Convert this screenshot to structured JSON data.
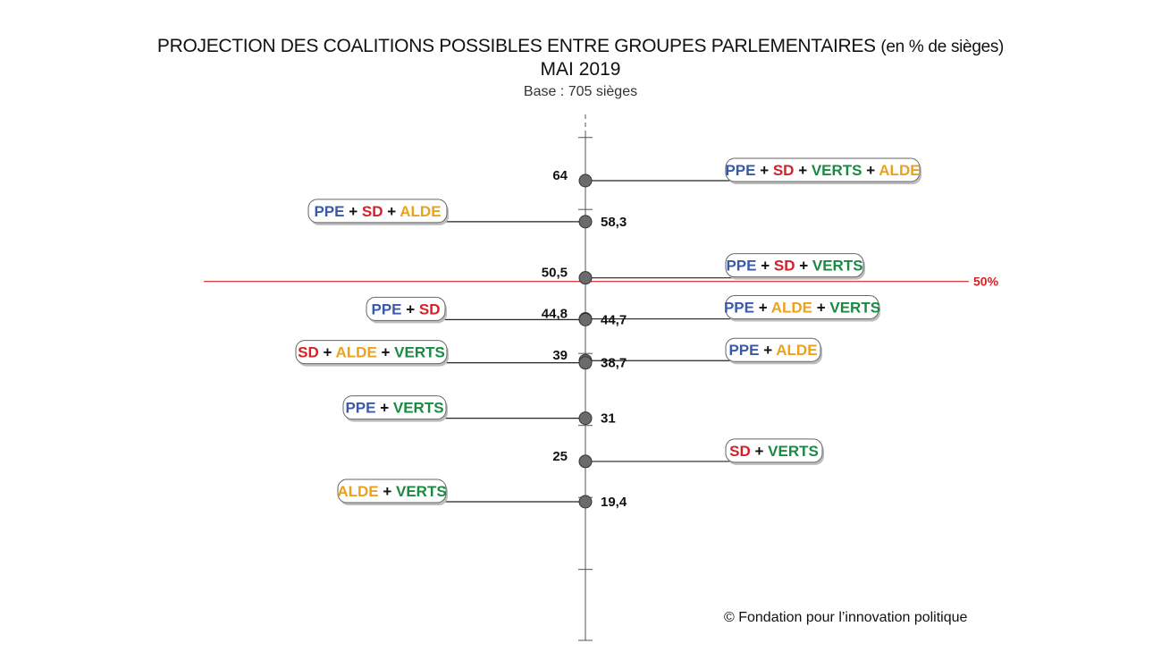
{
  "title": {
    "main": "PROJECTION DES COALITIONS POSSIBLES ENTRE GROUPES PARLEMENTAIRES",
    "unit": "(en % de sièges)",
    "subtitle": "MAI 2019",
    "base": "Base : 705 sièges"
  },
  "copyright": "© Fondation pour l’innovation politique",
  "colors": {
    "PPE": "#3a5aa8",
    "SD": "#d62027",
    "VERTS": "#1a8a43",
    "ALDE": "#eaa21c",
    "plus": "#111111",
    "threshold": "#d62027",
    "axis": "#555555",
    "dot": "#6b6b6b"
  },
  "chart_data": {
    "type": "scatter",
    "title": "PROJECTION DES COALITIONS POSSIBLES ENTRE GROUPES PARLEMENTAIRES (en % de sièges)",
    "ylabel": "% de sièges",
    "ylim": [
      0,
      75
    ],
    "threshold": {
      "value": 50,
      "label": "50%"
    },
    "points": [
      {
        "value": 64,
        "label": "64",
        "side": "right",
        "parties": [
          "PPE",
          "SD",
          "VERTS",
          "ALDE"
        ]
      },
      {
        "value": 58.3,
        "label": "58,3",
        "side": "left",
        "parties": [
          "PPE",
          "SD",
          "ALDE"
        ]
      },
      {
        "value": 50.5,
        "label": "50,5",
        "side": "right",
        "parties": [
          "PPE",
          "SD",
          "VERTS"
        ]
      },
      {
        "value": 44.8,
        "label": "44,8",
        "side": "right",
        "parties": [
          "PPE",
          "ALDE",
          "VERTS"
        ]
      },
      {
        "value": 44.7,
        "label": "44,7",
        "side": "left",
        "parties": [
          "PPE",
          "SD"
        ]
      },
      {
        "value": 39,
        "label": "39",
        "side": "right",
        "parties": [
          "PPE",
          "ALDE"
        ]
      },
      {
        "value": 38.7,
        "label": "38,7",
        "side": "left",
        "parties": [
          "SD",
          "ALDE",
          "VERTS"
        ]
      },
      {
        "value": 31,
        "label": "31",
        "side": "left",
        "parties": [
          "PPE",
          "VERTS"
        ]
      },
      {
        "value": 25,
        "label": "25",
        "side": "right",
        "parties": [
          "SD",
          "VERTS"
        ]
      },
      {
        "value": 19.4,
        "label": "19,4",
        "side": "left",
        "parties": [
          "ALDE",
          "VERTS"
        ]
      }
    ]
  }
}
